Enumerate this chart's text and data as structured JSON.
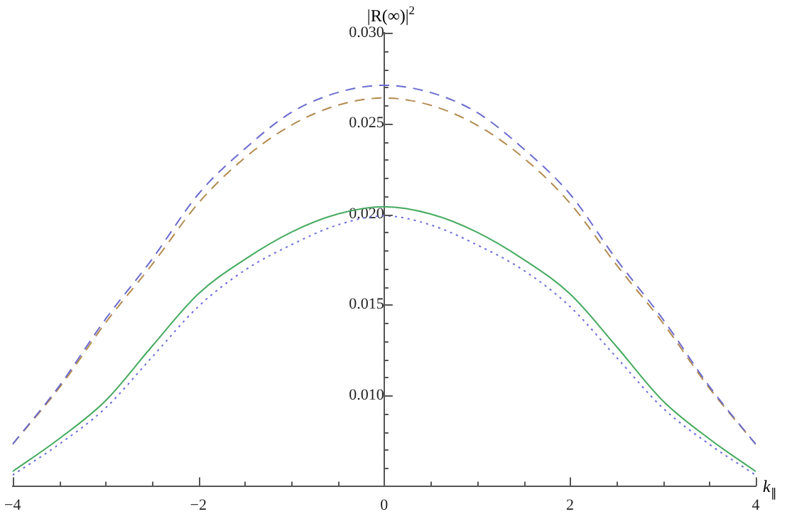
{
  "chart_data": {
    "type": "line",
    "xlabel": "k$_{∥}$",
    "ylabel": "|R(∞)|$^{2}$",
    "x": [
      -4,
      -3.5,
      -3,
      -2.5,
      -2,
      -1.5,
      -1,
      -0.5,
      0,
      0.5,
      1,
      1.5,
      2,
      2.5,
      3,
      3.5,
      4
    ],
    "series": [
      {
        "color": "#6b6bcf",
        "line_style": "dashed",
        "values": [
          0.0073,
          0.0105,
          0.0142,
          0.0175,
          0.0211,
          0.0236,
          0.0256,
          0.0267,
          0.0271,
          0.0267,
          0.0256,
          0.0236,
          0.0211,
          0.0175,
          0.0142,
          0.0105,
          0.0073
        ]
      },
      {
        "color": "#b38a4f",
        "line_style": "dashed",
        "values": [
          0.0073,
          0.0104,
          0.014,
          0.0172,
          0.0206,
          0.0231,
          0.0249,
          0.026,
          0.0264,
          0.026,
          0.0249,
          0.0231,
          0.0206,
          0.0172,
          0.014,
          0.0104,
          0.0073
        ]
      },
      {
        "color": "#44aa5e",
        "line_style": "solid",
        "values": [
          0.0058,
          0.0076,
          0.0097,
          0.0127,
          0.0156,
          0.0175,
          0.019,
          0.02,
          0.0204,
          0.02,
          0.019,
          0.0175,
          0.0156,
          0.0127,
          0.0097,
          0.0076,
          0.0058
        ]
      },
      {
        "color": "#6b6bdf",
        "line_style": "dotted",
        "values": [
          0.0056,
          0.0073,
          0.0093,
          0.0121,
          0.0149,
          0.0169,
          0.0183,
          0.0194,
          0.0199,
          0.0194,
          0.0183,
          0.0169,
          0.0149,
          0.0121,
          0.0093,
          0.0073,
          0.0056
        ]
      }
    ],
    "xlim": [
      -4,
      4
    ],
    "xticks": [
      {
        "value": -4,
        "label": "−4"
      },
      {
        "value": -3.5,
        "label": null
      },
      {
        "value": -3,
        "label": null
      },
      {
        "value": -2.5,
        "label": null
      },
      {
        "value": -2,
        "label": "−2"
      },
      {
        "value": -1.5,
        "label": null
      },
      {
        "value": -1,
        "label": null
      },
      {
        "value": -0.5,
        "label": null
      },
      0,
      {
        "value": 0.5,
        "label": null
      },
      {
        "value": 1,
        "label": null
      },
      {
        "value": 1.5,
        "label": null
      },
      2,
      {
        "value": 2.5,
        "label": null
      },
      {
        "value": 3,
        "label": null
      },
      {
        "value": 3.5,
        "label": null
      },
      4
    ],
    "ylim": [
      0.005,
      0.03
    ],
    "yticks": [
      {
        "value": 0.006,
        "label": null
      },
      {
        "value": 0.007,
        "label": null
      },
      {
        "value": 0.008,
        "label": null
      },
      {
        "value": 0.009,
        "label": null
      },
      {
        "value": 0.01,
        "label": "0.010"
      },
      {
        "value": 0.011,
        "label": null
      },
      {
        "value": 0.012,
        "label": null
      },
      {
        "value": 0.013,
        "label": null
      },
      {
        "value": 0.014,
        "label": null
      },
      {
        "value": 0.015,
        "label": "0.015"
      },
      {
        "value": 0.016,
        "label": null
      },
      {
        "value": 0.017,
        "label": null
      },
      {
        "value": 0.018,
        "label": null
      },
      {
        "value": 0.019,
        "label": null
      },
      {
        "value": 0.02,
        "label": "0.020"
      },
      {
        "value": 0.021,
        "label": null
      },
      {
        "value": 0.022,
        "label": null
      },
      {
        "value": 0.023,
        "label": null
      },
      {
        "value": 0.024,
        "label": null
      },
      {
        "value": 0.025,
        "label": "0.025"
      },
      {
        "value": 0.026,
        "label": null
      },
      {
        "value": 0.027,
        "label": null
      },
      {
        "value": 0.028,
        "label": null
      },
      {
        "value": 0.029,
        "label": null
      },
      {
        "value": 0.03,
        "label": "0.030"
      }
    ],
    "grid": false,
    "legend": false,
    "marker": "none"
  }
}
